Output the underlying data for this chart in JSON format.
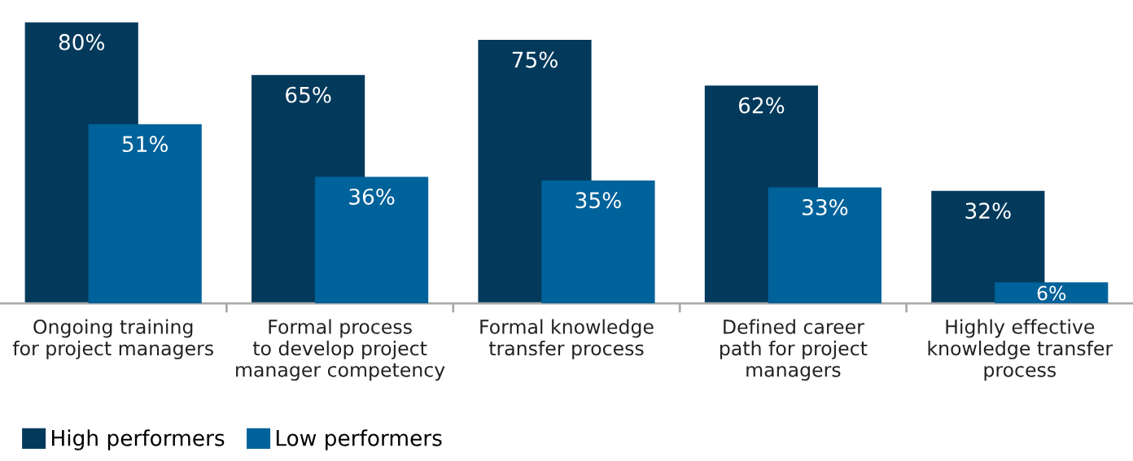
{
  "chart_data": {
    "type": "bar",
    "categories": [
      "Ongoing training\nfor project managers",
      "Formal process\nto develop project\nmanager competency",
      "Formal knowledge\ntransfer process",
      "Defined career\npath for project\nmanagers",
      "Highly effective\nknowledge transfer\nprocess"
    ],
    "series": [
      {
        "name": "High performers",
        "color": "#033a5c",
        "values": [
          80,
          65,
          75,
          62,
          32
        ],
        "value_labels": [
          "80%",
          "65%",
          "75%",
          "62%",
          "32%"
        ]
      },
      {
        "name": "Low performers",
        "color": "#00629a",
        "values": [
          51,
          36,
          35,
          33,
          6
        ],
        "value_labels": [
          "51%",
          "36%",
          "35%",
          "33%",
          "6%"
        ]
      }
    ],
    "legend": "bottom left",
    "grid": false
  }
}
